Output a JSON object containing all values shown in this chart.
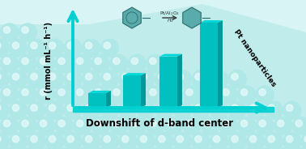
{
  "bar_values": [
    1.0,
    2.2,
    3.5,
    5.8
  ],
  "bar_color": "#00C0C0",
  "bar_top_color": "#00D8D8",
  "bar_side_color": "#009898",
  "axis_color": "#00D0D0",
  "background_color": "#FFFFFF",
  "xlabel": "Downshift of d-band center",
  "ylabel": "r (mmol mL⁻¹ h⁻¹)",
  "xlabel_fontsize": 8.5,
  "ylabel_fontsize": 7,
  "pt_label": "Pt nanoparticles",
  "pt_label_fontsize": 6.5,
  "sphere_color": "#B0E8E8",
  "sphere_highlight": "#E8FAFA",
  "sphere_shadow": "#88CCCC",
  "bg_fill": "#C8EEEE",
  "toluene_color": "#5AACAC",
  "mch_color": "#5AACAC",
  "reaction_arrow_color": "#444444",
  "reaction_text_color": "#444444"
}
